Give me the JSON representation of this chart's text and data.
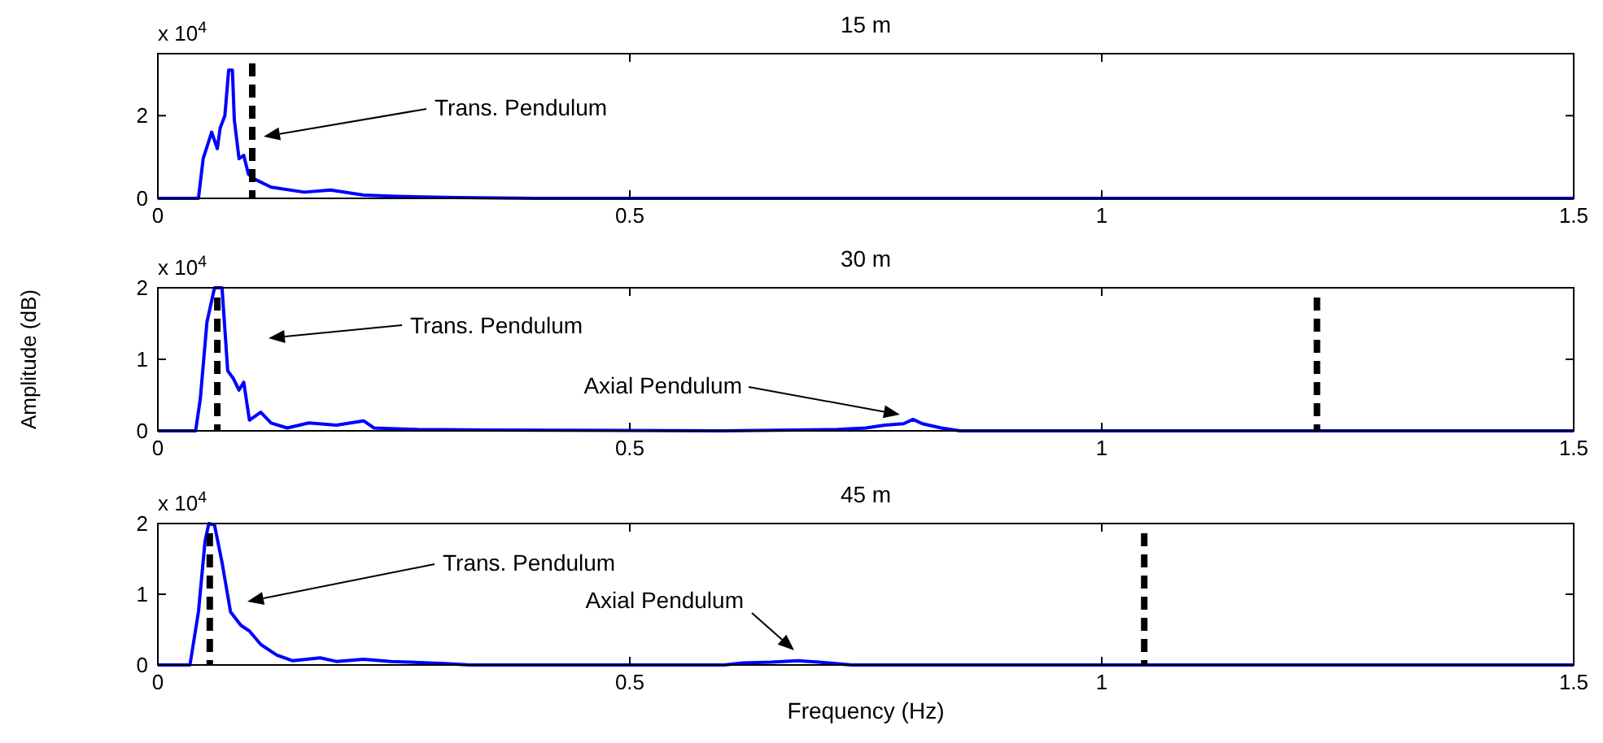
{
  "chart_data": [
    {
      "type": "line",
      "title": "15 m",
      "x": [
        0,
        0.043,
        0.048,
        0.057,
        0.063,
        0.066,
        0.071,
        0.075,
        0.079,
        0.081,
        0.086,
        0.091,
        0.096,
        0.103,
        0.12,
        0.155,
        0.183,
        0.218,
        0.252,
        0.315,
        0.4,
        1.5
      ],
      "series": [
        {
          "color": "#0000ff",
          "values": [
            0,
            0,
            0.96,
            1.6,
            1.2,
            1.7,
            2,
            3.1,
            3.1,
            1.9,
            0.96,
            1.04,
            0.58,
            0.46,
            0.27,
            0.15,
            0.2,
            0.08,
            0.05,
            0.02,
            0,
            0
          ]
        }
      ],
      "xlim": [
        0,
        1.5
      ],
      "xticks": [
        0,
        0.5,
        1,
        1.5
      ],
      "ylim": [
        0,
        3.5
      ],
      "yticks": [
        0,
        2
      ],
      "grid": false,
      "marker": "none",
      "line_style": "solid",
      "ref_lines": [
        {
          "axis": "x",
          "value": 0.1,
          "color": "#000000",
          "line_style": "dashed"
        }
      ],
      "annotations": [
        "x 10$^{4}$",
        "Trans. Pendulum"
      ]
    },
    {
      "type": "line",
      "title": "30 m",
      "ylabel": "Amplitude (dB)",
      "x": [
        0,
        0.04,
        0.045,
        0.052,
        0.06,
        0.068,
        0.074,
        0.08,
        0.086,
        0.091,
        0.097,
        0.109,
        0.12,
        0.137,
        0.16,
        0.189,
        0.218,
        0.229,
        0.275,
        0.35,
        0.6,
        0.72,
        0.75,
        0.77,
        0.79,
        0.8,
        0.81,
        0.83,
        0.85,
        1.5
      ],
      "series": [
        {
          "color": "#0000ff",
          "values": [
            0,
            0,
            0.45,
            1.52,
            2,
            2,
            0.84,
            0.73,
            0.57,
            0.68,
            0.15,
            0.26,
            0.11,
            0.04,
            0.11,
            0.08,
            0.14,
            0.04,
            0.02,
            0.01,
            0,
            0.02,
            0.04,
            0.08,
            0.1,
            0.16,
            0.1,
            0.04,
            0,
            0
          ]
        }
      ],
      "xlim": [
        0,
        1.5
      ],
      "xticks": [
        0,
        0.5,
        1,
        1.5
      ],
      "ylim": [
        0,
        2
      ],
      "yticks": [
        0,
        1,
        2
      ],
      "grid": false,
      "marker": "none",
      "line_style": "solid",
      "ref_lines": [
        {
          "axis": "x",
          "value": 0.063,
          "color": "#000000",
          "line_style": "dashed"
        },
        {
          "axis": "x",
          "value": 1.228,
          "color": "#000000",
          "line_style": "dashed"
        }
      ],
      "annotations": [
        "x 10$^{4}$",
        "Trans. Pendulum",
        "Axial Pendulum"
      ]
    },
    {
      "type": "line",
      "title": "45 m",
      "xlabel": "Frequency (Hz)",
      "x": [
        0,
        0.034,
        0.043,
        0.05,
        0.054,
        0.06,
        0.068,
        0.077,
        0.088,
        0.097,
        0.109,
        0.126,
        0.143,
        0.172,
        0.189,
        0.218,
        0.247,
        0.304,
        0.33,
        0.6,
        0.62,
        0.65,
        0.678,
        0.7,
        0.735,
        1.5
      ],
      "series": [
        {
          "color": "#0000ff",
          "values": [
            0,
            0,
            0.75,
            1.75,
            2,
            1.98,
            1.45,
            0.75,
            0.56,
            0.48,
            0.29,
            0.14,
            0.06,
            0.1,
            0.05,
            0.08,
            0.05,
            0.02,
            0,
            0,
            0.03,
            0.04,
            0.06,
            0.04,
            0,
            0
          ]
        }
      ],
      "xlim": [
        0,
        1.5
      ],
      "xticks": [
        0,
        0.5,
        1,
        1.5
      ],
      "ylim": [
        0,
        2
      ],
      "yticks": [
        0,
        1,
        2
      ],
      "grid": false,
      "marker": "none",
      "line_style": "solid",
      "ref_lines": [
        {
          "axis": "x",
          "value": 0.055,
          "color": "#000000",
          "line_style": "dashed"
        },
        {
          "axis": "x",
          "value": 1.045,
          "color": "#000000",
          "line_style": "dashed"
        }
      ],
      "annotations": [
        "x 10$^{4}$",
        "Trans. Pendulum",
        "Axial Pendulum"
      ]
    }
  ]
}
